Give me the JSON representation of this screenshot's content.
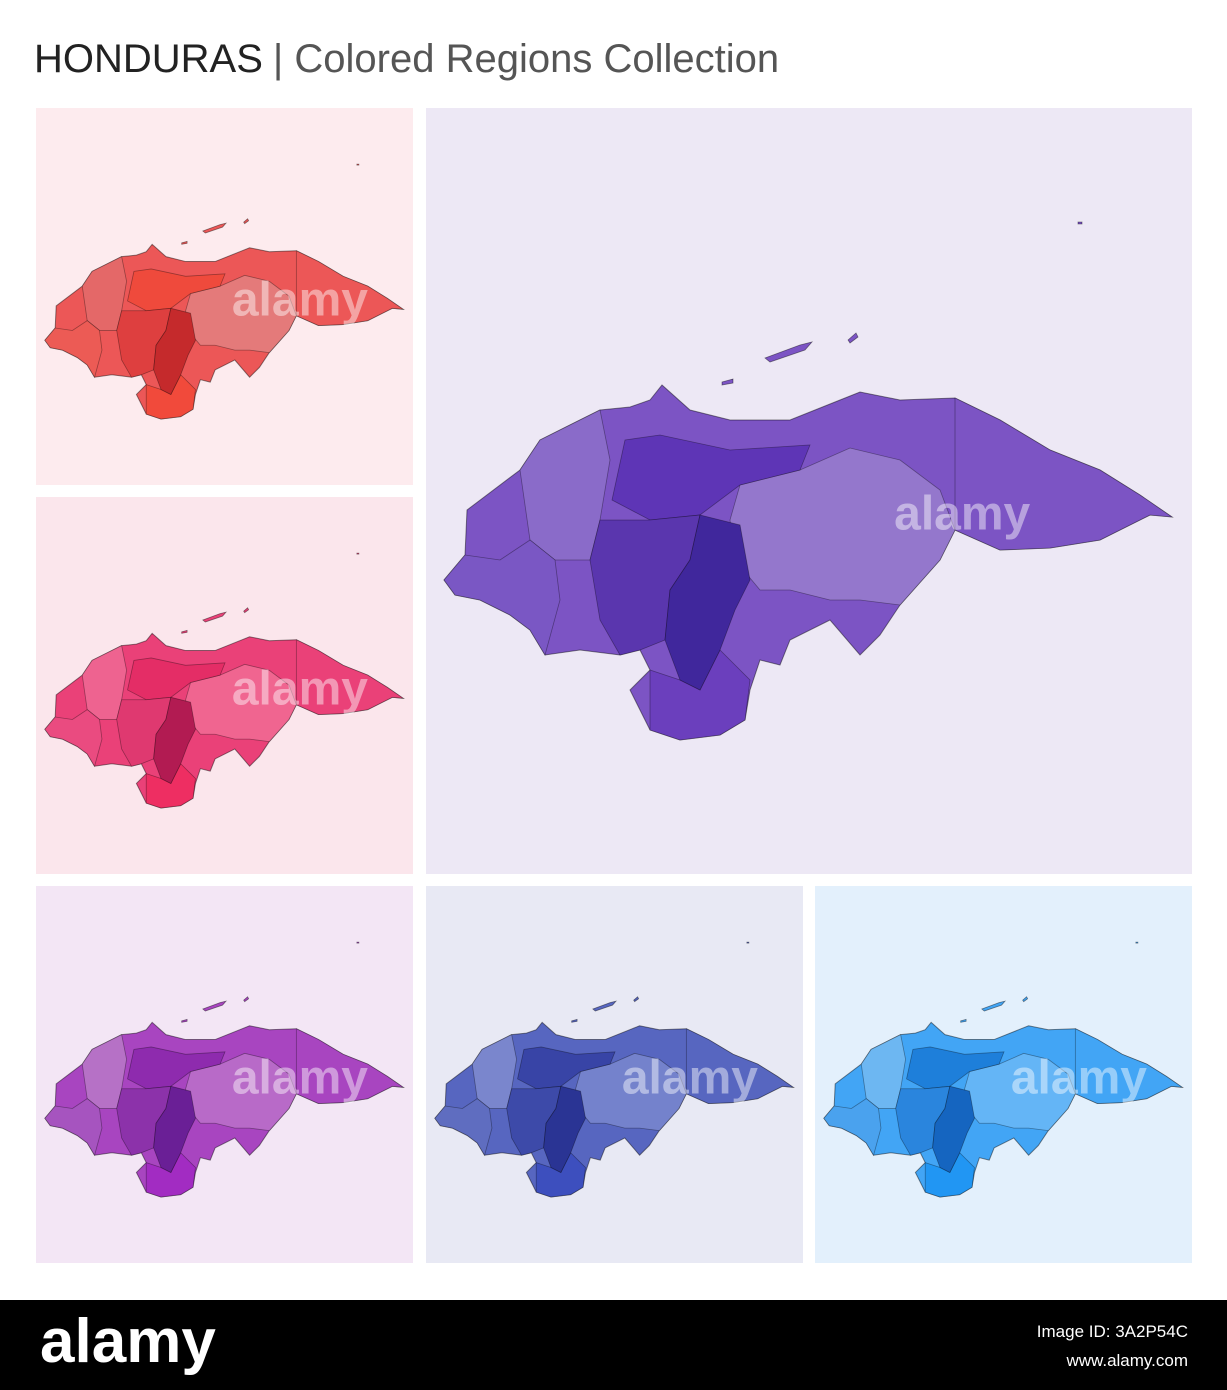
{
  "header": {
    "title": "HONDURAS",
    "subtitle": "| Colored Regions Collection"
  },
  "watermark": "alamy",
  "footer": {
    "logo": "alamy",
    "image_id": "Image ID: 3A2P54C",
    "url": "www.alamy.com"
  }
}
